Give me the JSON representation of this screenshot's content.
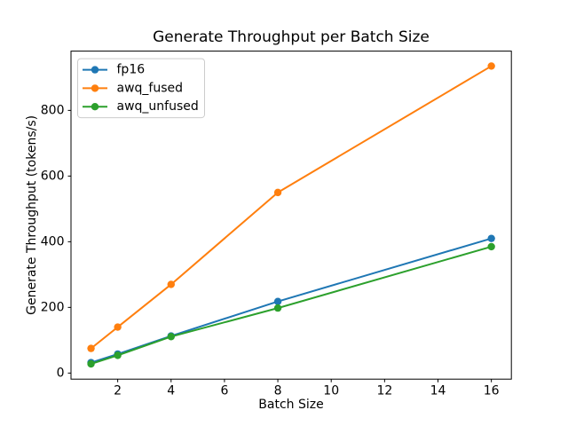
{
  "chart_data": {
    "type": "line",
    "title": "Generate Throughput per Batch Size",
    "xlabel": "Batch Size",
    "ylabel": "Generate Throughput (tokens/s)",
    "x": [
      1,
      2,
      4,
      8,
      16
    ],
    "series": [
      {
        "name": "fp16",
        "color": "#1f77b4",
        "values": [
          32,
          58,
          113,
          218,
          410
        ]
      },
      {
        "name": "awq_fused",
        "color": "#ff7f0e",
        "values": [
          75,
          140,
          270,
          550,
          935
        ]
      },
      {
        "name": "awq_unfused",
        "color": "#2ca02c",
        "values": [
          28,
          54,
          111,
          198,
          385
        ]
      }
    ],
    "xlim": [
      0.25,
      16.75
    ],
    "ylim": [
      -18.5,
      980.5
    ],
    "xticks": [
      2,
      4,
      6,
      8,
      10,
      12,
      14,
      16
    ],
    "yticks": [
      0,
      200,
      400,
      600,
      800
    ],
    "grid": false,
    "legend_position": "upper-left",
    "marker": "o",
    "background_color": "#ffffff",
    "axis_color": "#000000",
    "legend_border_color": "#cccccc",
    "legend_background_color": "#ffffff"
  }
}
